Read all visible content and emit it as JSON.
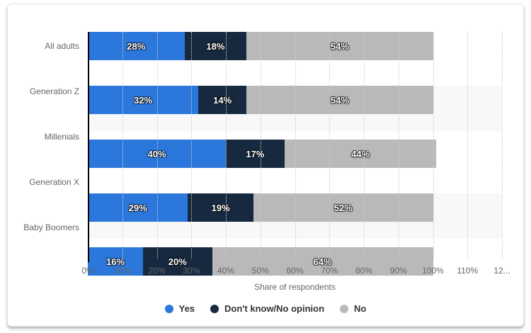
{
  "chart_data": {
    "type": "bar",
    "orientation": "horizontal-stacked",
    "categories": [
      "All adults",
      "Generation Z",
      "Millenials",
      "Generation X",
      "Baby Boomers"
    ],
    "series": [
      {
        "name": "Yes",
        "color": "#2b77dc",
        "values": [
          28,
          32,
          40,
          29,
          16
        ]
      },
      {
        "name": "Don't know/No opinion",
        "color": "#16293f",
        "values": [
          18,
          14,
          17,
          19,
          20
        ]
      },
      {
        "name": "No",
        "color": "#b9b9b9",
        "values": [
          54,
          54,
          44,
          52,
          64
        ]
      }
    ],
    "value_suffix": "%",
    "xlabel": "Share of respondents",
    "xlim": [
      0,
      120
    ],
    "x_tick_values": [
      0,
      10,
      20,
      30,
      40,
      50,
      60,
      70,
      80,
      90,
      100,
      110,
      120
    ],
    "x_tick_labels": [
      "0%",
      "10%",
      "20%",
      "30%",
      "40%",
      "50%",
      "60%",
      "70%",
      "80%",
      "90%",
      "100%",
      "110%",
      "12..."
    ],
    "grid": "dotted-vertical",
    "legend_position": "bottom-center",
    "band_alternate_rows": [
      1,
      3
    ]
  },
  "colors": {
    "background": "#ffffff",
    "band_alt": "#f8f8f8",
    "gridline": "#cccccc",
    "axis_line": "#000000",
    "category_label": "#666666",
    "tick_label": "#666666",
    "axis_title": "#666666",
    "legend_text": "#333333",
    "bar_label": "#ffffff",
    "card_border": "#e2e2e2"
  }
}
